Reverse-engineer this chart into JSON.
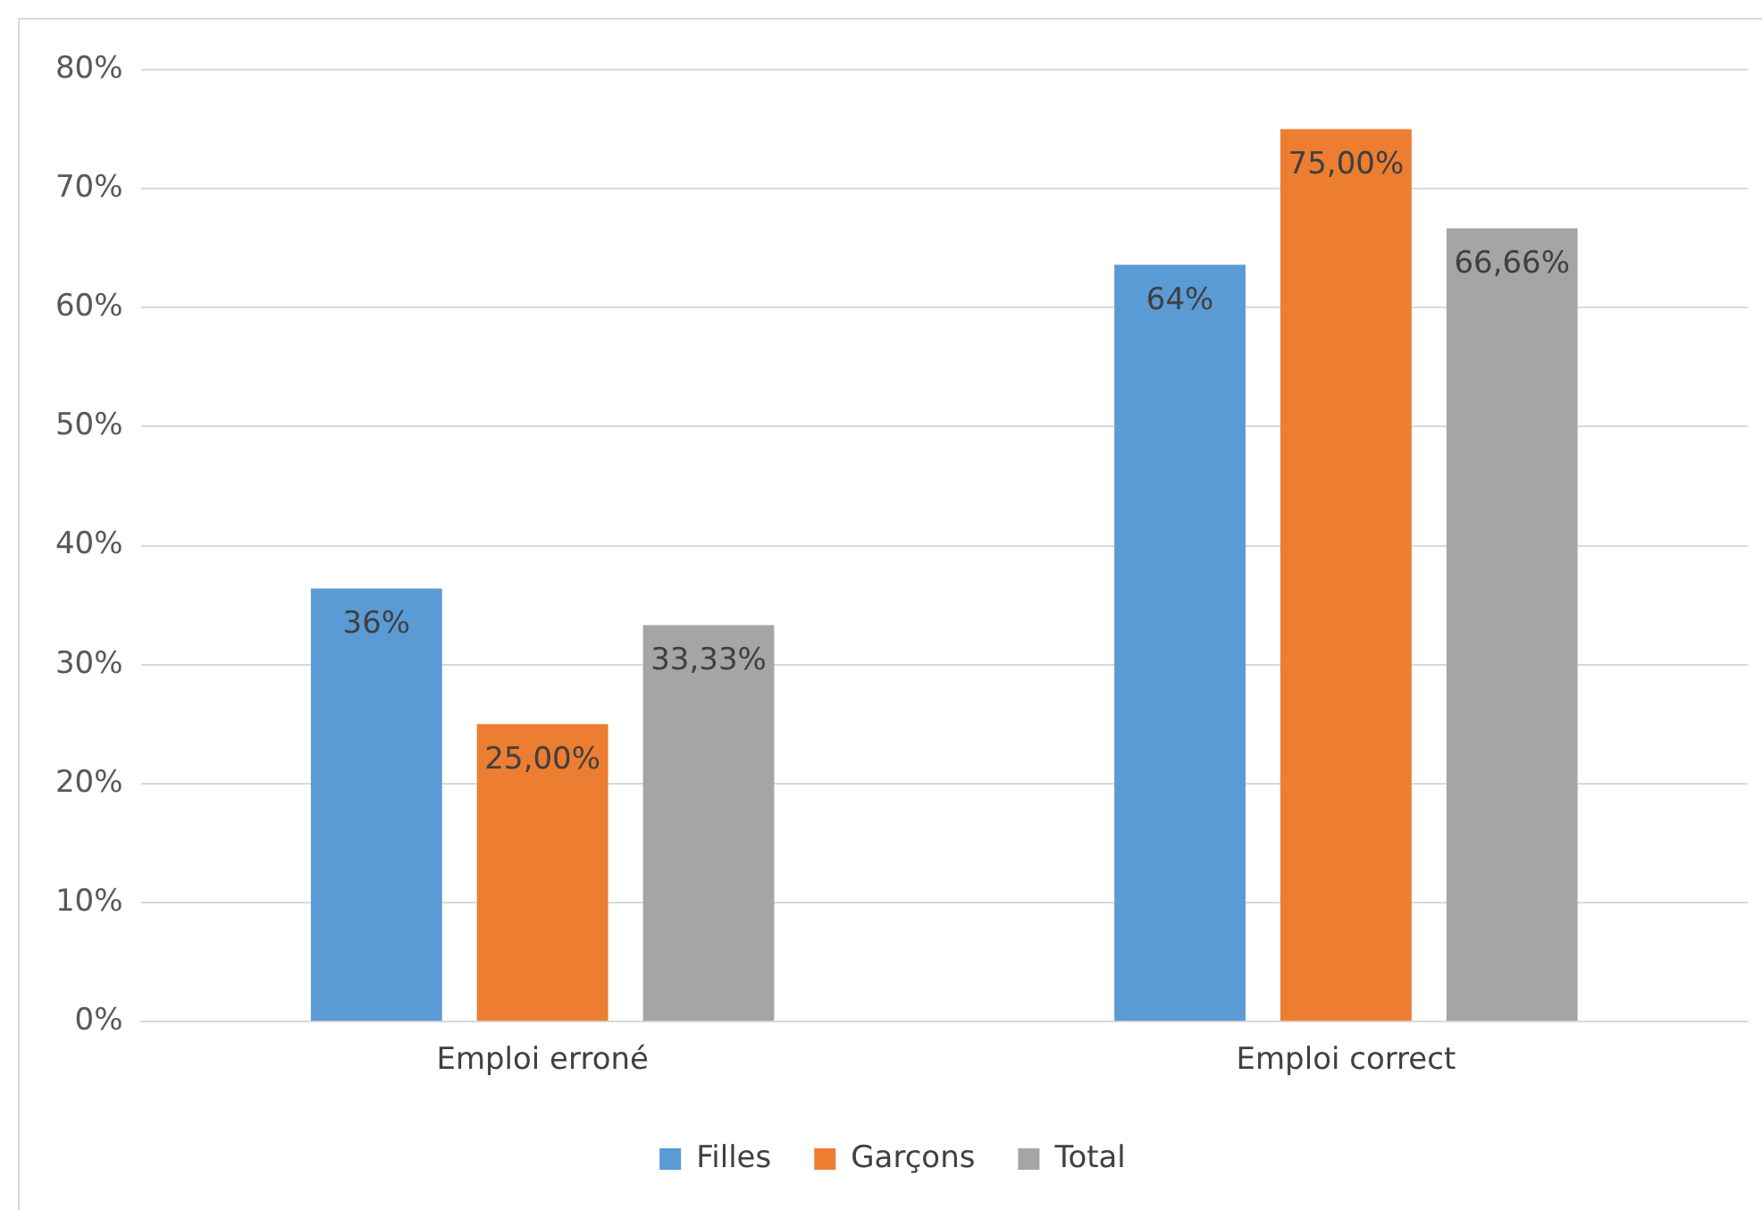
{
  "chart_data": {
    "type": "bar",
    "categories": [
      "Emploi erroné",
      "Emploi correct"
    ],
    "series": [
      {
        "name": "Filles",
        "color": "#5b9bd5",
        "values": [
          36.4,
          63.6
        ],
        "value_labels": [
          "36%",
          "64%"
        ]
      },
      {
        "name": "Garçons",
        "color": "#ed7d31",
        "values": [
          25,
          75
        ],
        "value_labels": [
          "25,00%",
          "75,00%"
        ]
      },
      {
        "name": "Total",
        "color": "#a5a5a5",
        "values": [
          33.33,
          66.66
        ],
        "value_labels": [
          "33,33%",
          "66,66%"
        ]
      }
    ],
    "ylim": [
      0,
      80
    ],
    "yticks": [
      {
        "value": 0,
        "label": "0%"
      },
      {
        "value": 10,
        "label": "10%"
      },
      {
        "value": 20,
        "label": "20%"
      },
      {
        "value": 30,
        "label": "30%"
      },
      {
        "value": 40,
        "label": "40%"
      },
      {
        "value": 50,
        "label": "50%"
      },
      {
        "value": 60,
        "label": "60%"
      },
      {
        "value": 70,
        "label": "70%"
      },
      {
        "value": 80,
        "label": "80%"
      }
    ],
    "grid": "y",
    "legend": "bottom"
  }
}
